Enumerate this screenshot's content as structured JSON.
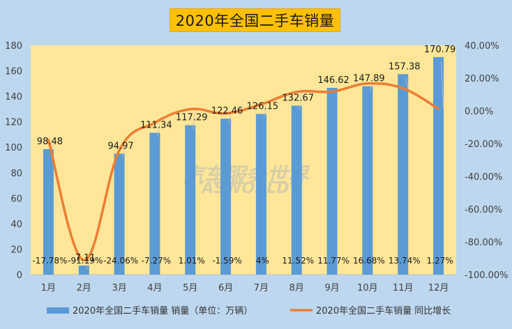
{
  "chart_data": {
    "type": "bar",
    "title": "2020年全国二手车销量",
    "categories": [
      "1月",
      "2月",
      "3月",
      "4月",
      "5月",
      "6月",
      "7月",
      "8月",
      "9月",
      "10月",
      "11月",
      "12月"
    ],
    "series": [
      {
        "name": "2020年全国二手车销量 销量（单位：万辆）",
        "type": "bar",
        "axis": "left",
        "values": [
          98.48,
          7.11,
          94.97,
          111.34,
          117.29,
          122.46,
          126.15,
          132.67,
          146.62,
          147.89,
          157.38,
          170.79
        ],
        "labels": [
          "98.48",
          "7.11",
          "94.97",
          "111.34",
          "117.29",
          "122.46",
          "126.15",
          "132.67",
          "146.62",
          "147.89",
          "157.38",
          "170.79"
        ]
      },
      {
        "name": "2020年全国二手车销量 同比增长",
        "type": "line",
        "axis": "right",
        "values": [
          -17.78,
          -91.19,
          -24.06,
          -7.27,
          1.01,
          -1.59,
          4,
          11.52,
          11.77,
          16.68,
          13.74,
          1.27
        ],
        "labels": [
          "-17.78%",
          "-91.19%",
          "-24.06%",
          "-7.27%",
          "1.01%",
          "-1.59%",
          "4%",
          "11.52%",
          "11.77%",
          "16.68%",
          "13.74%",
          "1.27%"
        ]
      }
    ],
    "y_left": {
      "min": 0,
      "max": 180,
      "ticks": [
        "0",
        "20",
        "40",
        "60",
        "80",
        "100",
        "120",
        "140",
        "160",
        "180"
      ]
    },
    "y_right": {
      "min": -100,
      "max": 40,
      "ticks": [
        "-100.00%",
        "-80.00%",
        "-60.00%",
        "-40.00%",
        "-20.00%",
        "0.00%",
        "20.00%",
        "40.00%"
      ]
    },
    "grid": false,
    "legend_position": "bottom",
    "watermark": {
      "cn": "汽车服务世界",
      "en": "ASWORLD"
    },
    "colors": {
      "background": "#BDD7EE",
      "plot_area": "#FFE699",
      "bar": "#5B9BD5",
      "line": "#ED7D31",
      "title_box": "#FFC000"
    }
  }
}
